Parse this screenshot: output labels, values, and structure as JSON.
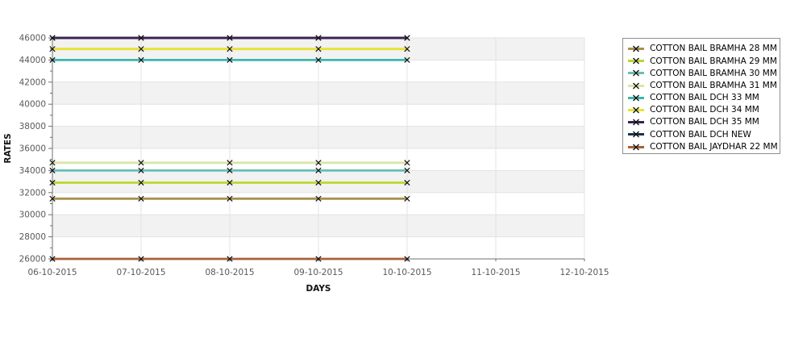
{
  "chart_data": {
    "type": "line",
    "title": "",
    "xlabel": "DAYS",
    "ylabel": "RATES",
    "x_categories": [
      "06-10-2015",
      "07-10-2015",
      "08-10-2015",
      "09-10-2015",
      "10-10-2015",
      "11-10-2015",
      "12-10-2015"
    ],
    "data_dates": [
      "06-10-2015",
      "07-10-2015",
      "08-10-2015",
      "09-10-2015",
      "10-10-2015"
    ],
    "ylim": [
      26000,
      46000
    ],
    "ytick_step": 2000,
    "yminor_step": 1000,
    "legend_position": "right-outside",
    "marker": "x",
    "grid": {
      "vertical_lines": true,
      "horizontal_bands": true
    },
    "style": {
      "band_color": "#f2f2f2",
      "grid_color": "#e3e3e3",
      "axis_color": "#6f6f6f",
      "tick_label_color": "#595959",
      "axis_title_color": "#111111",
      "marker_color": "#111111",
      "legend_border_color": "#8f8f8f"
    },
    "series": [
      {
        "name": "COTTON BAIL BRAMHA 28 MM",
        "color": "#a8914e",
        "values": [
          31450,
          31450,
          31450,
          31450,
          31450
        ]
      },
      {
        "name": "COTTON BAIL BRAMHA 29 MM",
        "color": "#bdd62c",
        "values": [
          32900,
          32900,
          32900,
          32900,
          32900
        ]
      },
      {
        "name": "COTTON BAIL BRAMHA 30 MM",
        "color": "#66c0b5",
        "values": [
          34000,
          34000,
          34000,
          34000,
          34000
        ]
      },
      {
        "name": "COTTON BAIL BRAMHA 31 MM",
        "color": "#d9e6a7",
        "values": [
          34700,
          34700,
          34700,
          34700,
          34700
        ]
      },
      {
        "name": "COTTON BAIL DCH 33 MM",
        "color": "#3ab7ae",
        "values": [
          44000,
          44000,
          44000,
          44000,
          44000
        ]
      },
      {
        "name": "COTTON BAIL DCH 34 MM",
        "color": "#e7e234",
        "values": [
          45000,
          45000,
          45000,
          45000,
          45000
        ]
      },
      {
        "name": "COTTON BAIL DCH 35 MM",
        "color": "#3a2150",
        "values": [
          46000,
          46000,
          46000,
          46000,
          46000
        ]
      },
      {
        "name": "COTTON BAIL DCH NEW",
        "color": "#1d3152",
        "values": [
          46000,
          46000,
          46000,
          46000,
          46000
        ],
        "note": "coincides with DCH 35 MM line and is hidden beneath it"
      },
      {
        "name": "COTTON BAIL JAYDHAR 22 MM",
        "color": "#a9603a",
        "values": [
          26000,
          26000,
          26000,
          26000,
          26000
        ]
      }
    ]
  }
}
